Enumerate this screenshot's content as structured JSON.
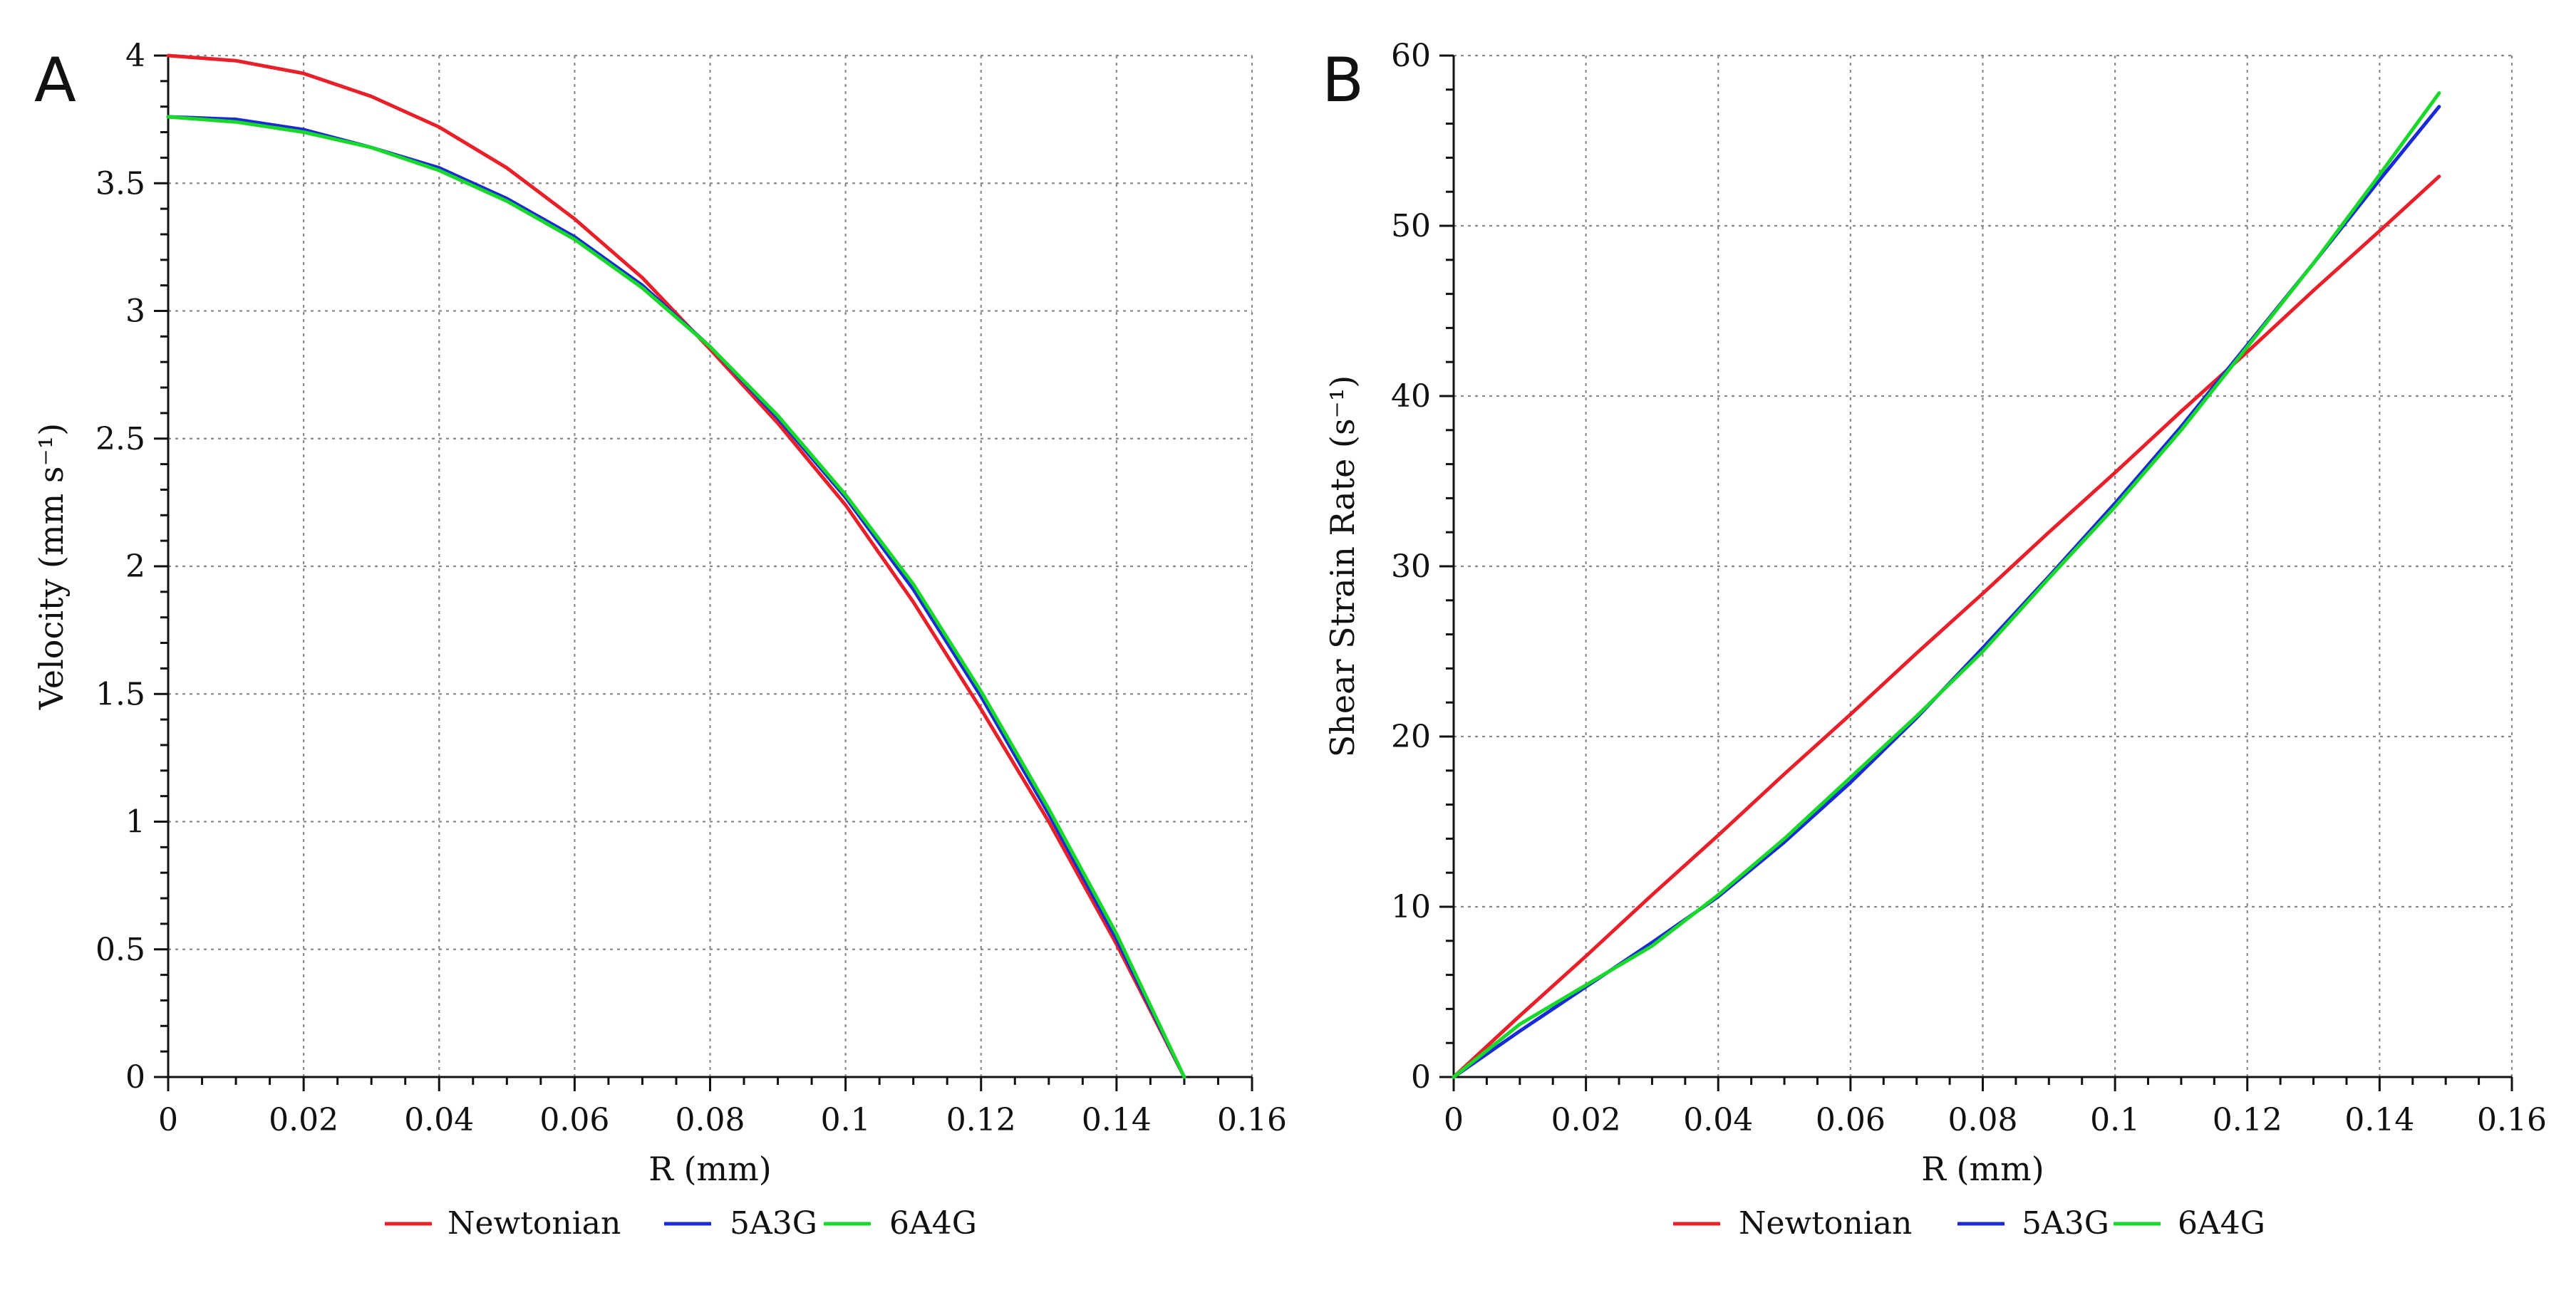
{
  "chart_data": [
    {
      "panel": "A",
      "type": "line",
      "xlabel": "R (mm)",
      "ylabel": "Velocity (mm s⁻¹)",
      "xlim": [
        0,
        0.16
      ],
      "ylim": [
        0,
        4
      ],
      "xticks": [
        0,
        0.02,
        0.04,
        0.06,
        0.08,
        0.1,
        0.12,
        0.14,
        0.16
      ],
      "xtick_labels": [
        "0",
        "0.02",
        "0.04",
        "0.06",
        "0.08",
        "0.1",
        "0.12",
        "0.14",
        "0.16"
      ],
      "yticks": [
        0,
        0.5,
        1,
        1.5,
        2,
        2.5,
        3,
        3.5,
        4
      ],
      "ytick_labels": [
        "0",
        "0.5",
        "1",
        "1.5",
        "2",
        "2.5",
        "3",
        "3.5",
        "4"
      ],
      "grid": true,
      "legend_position": "bottom",
      "series": [
        {
          "name": "Newtonian",
          "color": "#e8202a",
          "x": [
            0,
            0.01,
            0.02,
            0.03,
            0.04,
            0.05,
            0.06,
            0.07,
            0.08,
            0.09,
            0.1,
            0.11,
            0.12,
            0.13,
            0.14,
            0.15
          ],
          "y": [
            4.0,
            3.98,
            3.93,
            3.84,
            3.72,
            3.56,
            3.36,
            3.13,
            2.85,
            2.56,
            2.24,
            1.86,
            1.44,
            1.0,
            0.52,
            0.0
          ]
        },
        {
          "name": "5A3G",
          "color": "#1a2ad6",
          "x": [
            0,
            0.01,
            0.02,
            0.03,
            0.04,
            0.05,
            0.06,
            0.07,
            0.08,
            0.09,
            0.1,
            0.11,
            0.12,
            0.13,
            0.14,
            0.15
          ],
          "y": [
            3.76,
            3.75,
            3.71,
            3.64,
            3.56,
            3.44,
            3.29,
            3.1,
            2.86,
            2.58,
            2.27,
            1.91,
            1.49,
            1.03,
            0.54,
            0.0
          ]
        },
        {
          "name": "6A4G",
          "color": "#18d82a",
          "x": [
            0,
            0.01,
            0.02,
            0.03,
            0.04,
            0.05,
            0.06,
            0.07,
            0.08,
            0.09,
            0.1,
            0.11,
            0.12,
            0.13,
            0.14,
            0.15
          ],
          "y": [
            3.76,
            3.74,
            3.7,
            3.64,
            3.55,
            3.43,
            3.28,
            3.09,
            2.86,
            2.59,
            2.28,
            1.93,
            1.51,
            1.05,
            0.56,
            0.0
          ]
        }
      ]
    },
    {
      "panel": "B",
      "type": "line",
      "xlabel": "R (mm)",
      "ylabel": "Shear Strain Rate (s⁻¹)",
      "xlim": [
        0,
        0.16
      ],
      "ylim": [
        0,
        60
      ],
      "xticks": [
        0,
        0.02,
        0.04,
        0.06,
        0.08,
        0.1,
        0.12,
        0.14,
        0.16
      ],
      "xtick_labels": [
        "0",
        "0.02",
        "0.04",
        "0.06",
        "0.08",
        "0.1",
        "0.12",
        "0.14",
        "0.16"
      ],
      "yticks": [
        0,
        10,
        20,
        30,
        40,
        50,
        60
      ],
      "ytick_labels": [
        "0",
        "10",
        "20",
        "30",
        "40",
        "50",
        "60"
      ],
      "grid": true,
      "legend_position": "bottom",
      "series": [
        {
          "name": "Newtonian",
          "color": "#e8202a",
          "x": [
            0,
            0.01,
            0.02,
            0.03,
            0.04,
            0.05,
            0.06,
            0.07,
            0.08,
            0.09,
            0.1,
            0.11,
            0.12,
            0.13,
            0.14,
            0.149
          ],
          "y": [
            0,
            3.6,
            7.1,
            10.7,
            14.2,
            17.8,
            21.3,
            24.9,
            28.4,
            32.0,
            35.5,
            39.1,
            42.6,
            46.2,
            49.7,
            52.9
          ]
        },
        {
          "name": "5A3G",
          "color": "#1a2ad6",
          "x": [
            0,
            0.01,
            0.02,
            0.03,
            0.04,
            0.05,
            0.06,
            0.07,
            0.08,
            0.09,
            0.1,
            0.11,
            0.12,
            0.13,
            0.14,
            0.149
          ],
          "y": [
            0,
            2.7,
            5.3,
            7.9,
            10.6,
            13.8,
            17.3,
            21.1,
            25.2,
            29.4,
            33.7,
            38.2,
            43.0,
            47.8,
            52.7,
            57.0
          ]
        },
        {
          "name": "6A4G",
          "color": "#18d82a",
          "x": [
            0,
            0.01,
            0.02,
            0.03,
            0.04,
            0.05,
            0.06,
            0.07,
            0.08,
            0.09,
            0.1,
            0.11,
            0.12,
            0.13,
            0.14,
            0.149
          ],
          "y": [
            0,
            3.1,
            5.4,
            7.7,
            10.7,
            14.0,
            17.6,
            21.2,
            25.0,
            29.3,
            33.5,
            38.0,
            42.9,
            47.8,
            53.0,
            57.8
          ]
        }
      ]
    }
  ]
}
